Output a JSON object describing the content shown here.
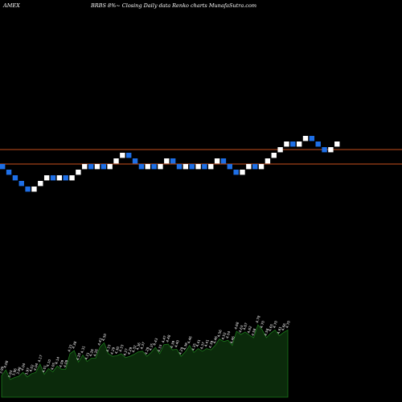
{
  "header": {
    "exchange": "AMEX",
    "title": "BRBS 8%~  Closing Daily data  Renko  charts MunafaSutra.com"
  },
  "colors": {
    "background": "#000000",
    "up_brick": "#ffffff",
    "down_brick": "#1e6fe6",
    "level_line": "#c8501e",
    "volume_fill": "#0b2a0b",
    "volume_stroke": "#1b7a1b",
    "volume_label": "#ffffff"
  },
  "chart_data": [
    {
      "type": "renko",
      "brick_size": 0.03,
      "directions": [
        "down",
        "down",
        "down",
        "down",
        "down",
        "up",
        "up",
        "up",
        "down",
        "up",
        "down",
        "up",
        "up",
        "up",
        "down",
        "up",
        "down",
        "up",
        "up",
        "up",
        "down",
        "down",
        "down",
        "up",
        "down",
        "up",
        "up",
        "down",
        "down",
        "up",
        "down",
        "up",
        "down",
        "up",
        "up",
        "down",
        "down",
        "down",
        "up",
        "up",
        "down",
        "up",
        "up",
        "up",
        "up",
        "up",
        "down",
        "up",
        "up",
        "down",
        "down",
        "down",
        "up",
        "up"
      ],
      "levels": [
        4.76,
        4.69
      ],
      "grid": false
    },
    {
      "type": "area",
      "name": "volume",
      "labels": [
        "3.99",
        "4.08",
        "3.93",
        "3.96",
        "3.98",
        "4.04",
        "3.97",
        "4.02",
        "4.04",
        "4.17",
        "4.01",
        "4.10",
        "4.05",
        "4.14",
        "4.09",
        "4.09",
        "4.33",
        "4.38",
        "4.20",
        "4.31",
        "4.21",
        "4.26",
        "4.26",
        "4.43",
        "4.50",
        "4.33",
        "4.29",
        "4.30",
        "4.33",
        "4.27",
        "4.29",
        "4.32",
        "4.36",
        "4.37",
        "4.29",
        "4.35",
        "4.43",
        "4.33",
        "4.47",
        "4.48",
        "4.39",
        "4.40",
        "4.29",
        "4.36",
        "4.46",
        "4.35",
        "4.41",
        "4.37",
        "4.41",
        "4.39",
        "4.46",
        "4.56",
        "4.52",
        "4.54",
        "4.46",
        "4.68",
        "4.63",
        "4.67",
        "4.62",
        "4.58",
        "4.78",
        "4.70",
        "4.58",
        "4.65",
        "4.70",
        "4.61",
        "4.66",
        "4.70"
      ]
    }
  ]
}
